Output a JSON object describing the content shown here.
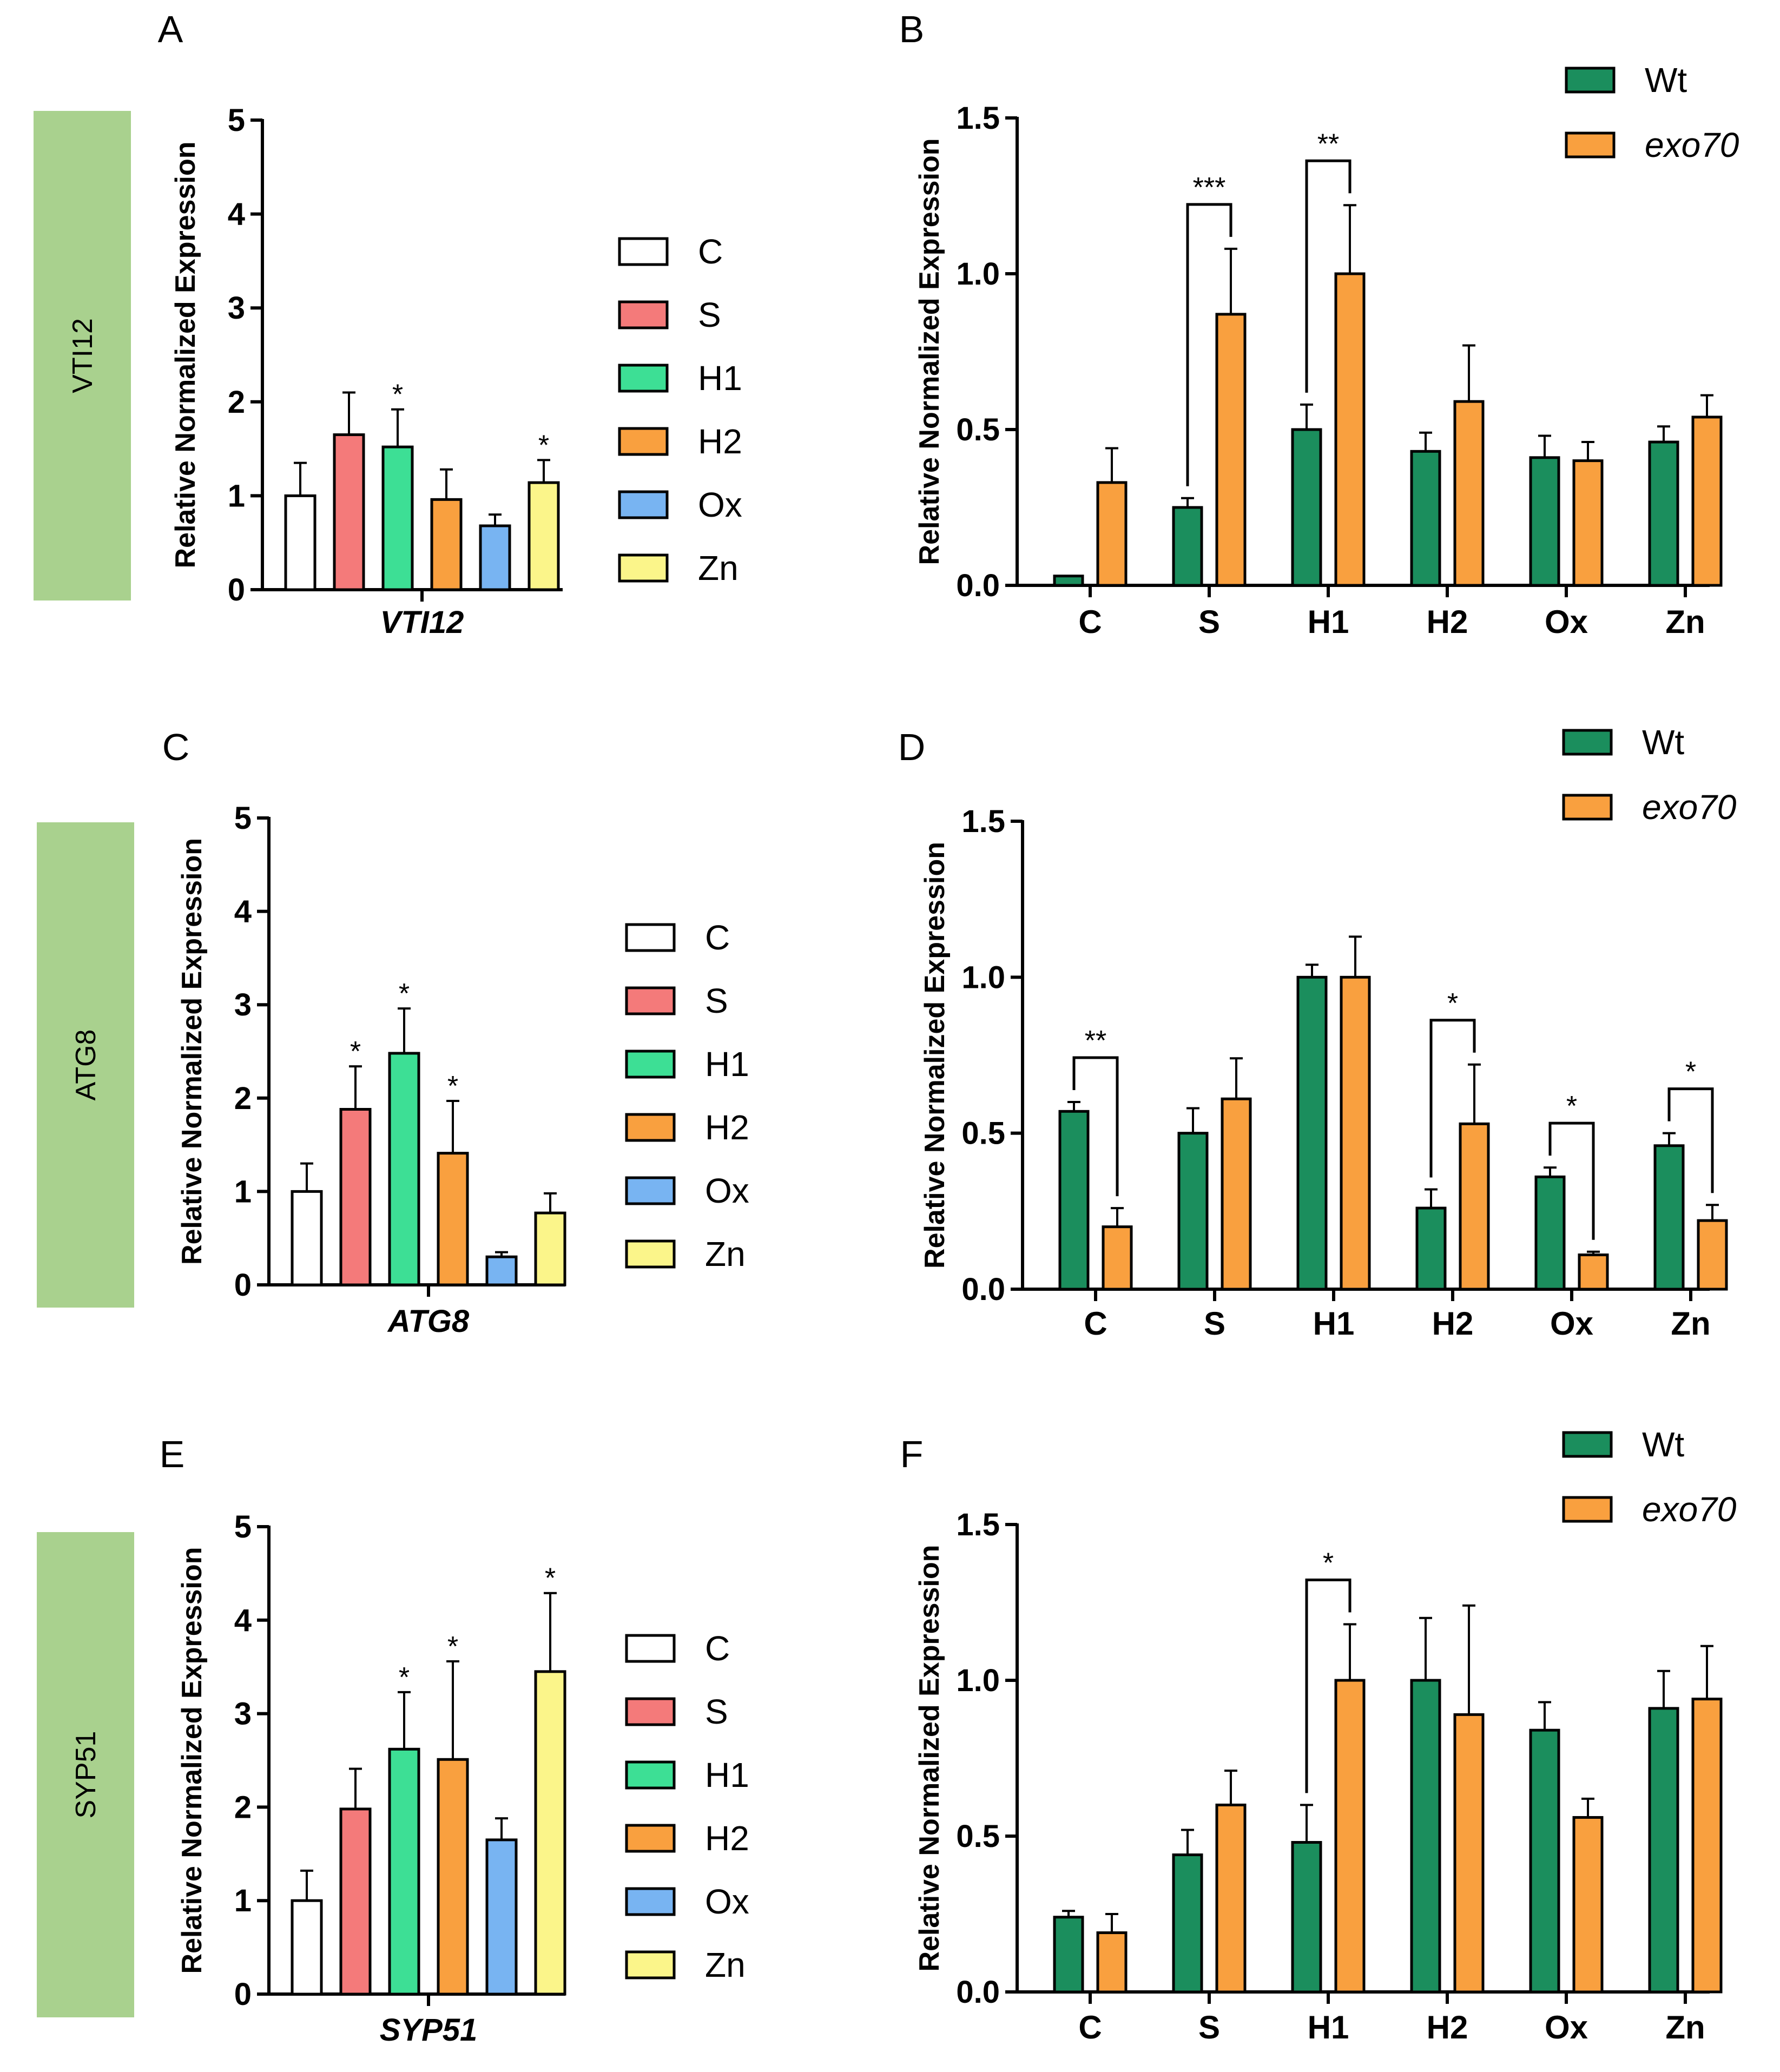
{
  "figure": {
    "background": "#ffffff"
  },
  "colors": {
    "C": "#ffffff",
    "S": "#f47a7a",
    "H1": "#3ddf95",
    "H2": "#f9a03f",
    "Ox": "#78b4f2",
    "Zn": "#fbf58a",
    "Wt": "#1b8e5d",
    "exo70": "#f9a03f",
    "gene_box": "#a9d18e"
  },
  "chart_data": [
    {
      "panel": "A",
      "type": "bar",
      "gene_label": "VTI12",
      "xlabel": "VTI12",
      "ylabel": "Relative Normalized Expression",
      "ylim": [
        0,
        5
      ],
      "yticks": [
        "0",
        "1",
        "2",
        "3",
        "4",
        "5"
      ],
      "grid": false,
      "legend_position": "right",
      "categories": [
        "C",
        "S",
        "H1",
        "H2",
        "Ox",
        "Zn"
      ],
      "values": [
        1.0,
        1.65,
        1.52,
        0.96,
        0.68,
        1.14
      ],
      "errors": [
        0.35,
        0.45,
        0.4,
        0.32,
        0.12,
        0.24
      ],
      "significance": [
        "",
        "",
        "*",
        "",
        "",
        "*"
      ]
    },
    {
      "panel": "B",
      "type": "bar",
      "xlabel": "",
      "ylabel": "Relative Normalized Expression",
      "ylim": [
        0,
        1.5
      ],
      "yticks": [
        "0.0",
        "0.5",
        "1.0",
        "1.5"
      ],
      "grid": false,
      "legend_position": "top-right",
      "categories": [
        "C",
        "S",
        "H1",
        "H2",
        "Ox",
        "Zn"
      ],
      "series": [
        {
          "name": "Wt",
          "values": [
            0.03,
            0.25,
            0.5,
            0.43,
            0.41,
            0.46
          ],
          "errors": [
            0.0,
            0.03,
            0.08,
            0.06,
            0.07,
            0.05
          ]
        },
        {
          "name": "exo70",
          "values": [
            0.33,
            0.87,
            1.0,
            0.59,
            0.4,
            0.54
          ],
          "errors": [
            0.11,
            0.21,
            0.22,
            0.18,
            0.06,
            0.07
          ]
        }
      ],
      "comparisons": [
        {
          "category": 1,
          "label": "***"
        },
        {
          "category": 2,
          "label": "**"
        }
      ]
    },
    {
      "panel": "C",
      "type": "bar",
      "gene_label": "ATG8",
      "xlabel": "ATG8",
      "ylabel": "Relative Normalized Expression",
      "ylim": [
        0,
        5
      ],
      "yticks": [
        "0",
        "1",
        "2",
        "3",
        "4",
        "5"
      ],
      "grid": false,
      "legend_position": "right",
      "categories": [
        "C",
        "S",
        "H1",
        "H2",
        "Ox",
        "Zn"
      ],
      "values": [
        1.0,
        1.88,
        2.48,
        1.41,
        0.3,
        0.77
      ],
      "errors": [
        0.3,
        0.46,
        0.48,
        0.56,
        0.05,
        0.21
      ],
      "significance": [
        "",
        "*",
        "*",
        "*",
        "",
        ""
      ]
    },
    {
      "panel": "D",
      "type": "bar",
      "xlabel": "",
      "ylabel": "Relative Normalized Expression",
      "ylim": [
        0,
        1.5
      ],
      "yticks": [
        "0.0",
        "0.5",
        "1.0",
        "1.5"
      ],
      "grid": false,
      "legend_position": "top-right",
      "categories": [
        "C",
        "S",
        "H1",
        "H2",
        "Ox",
        "Zn"
      ],
      "series": [
        {
          "name": "Wt",
          "values": [
            0.57,
            0.5,
            1.0,
            0.26,
            0.36,
            0.46
          ],
          "errors": [
            0.03,
            0.08,
            0.04,
            0.06,
            0.03,
            0.04
          ]
        },
        {
          "name": "exo70",
          "values": [
            0.2,
            0.61,
            1.0,
            0.53,
            0.11,
            0.22
          ],
          "errors": [
            0.06,
            0.13,
            0.13,
            0.19,
            0.01,
            0.05
          ]
        }
      ],
      "comparisons": [
        {
          "category": 0,
          "label": "**"
        },
        {
          "category": 3,
          "label": "*"
        },
        {
          "category": 4,
          "label": "*"
        },
        {
          "category": 5,
          "label": "*"
        }
      ]
    },
    {
      "panel": "E",
      "type": "bar",
      "gene_label": "SYP51",
      "xlabel": "SYP51",
      "ylabel": "Relative Normalized Expression",
      "ylim": [
        0,
        5
      ],
      "yticks": [
        "0",
        "1",
        "2",
        "3",
        "4",
        "5"
      ],
      "grid": false,
      "legend_position": "right",
      "categories": [
        "C",
        "S",
        "H1",
        "H2",
        "Ox",
        "Zn"
      ],
      "values": [
        1.0,
        1.98,
        2.62,
        2.51,
        1.65,
        3.45
      ],
      "errors": [
        0.32,
        0.43,
        0.61,
        1.05,
        0.23,
        0.84
      ],
      "significance": [
        "",
        "",
        "*",
        "*",
        "",
        "*"
      ]
    },
    {
      "panel": "F",
      "type": "bar",
      "xlabel": "",
      "ylabel": "Relative Normalized Expression",
      "ylim": [
        0,
        1.5
      ],
      "yticks": [
        "0.0",
        "0.5",
        "1.0",
        "1.5"
      ],
      "grid": false,
      "legend_position": "top-right",
      "categories": [
        "C",
        "S",
        "H1",
        "H2",
        "Ox",
        "Zn"
      ],
      "series": [
        {
          "name": "Wt",
          "values": [
            0.24,
            0.44,
            0.48,
            1.0,
            0.84,
            0.91
          ],
          "errors": [
            0.02,
            0.08,
            0.12,
            0.2,
            0.09,
            0.12
          ]
        },
        {
          "name": "exo70",
          "values": [
            0.19,
            0.6,
            1.0,
            0.89,
            0.56,
            0.94
          ],
          "errors": [
            0.06,
            0.11,
            0.18,
            0.35,
            0.06,
            0.17
          ]
        }
      ],
      "comparisons": [
        {
          "category": 2,
          "label": "*"
        }
      ]
    }
  ]
}
